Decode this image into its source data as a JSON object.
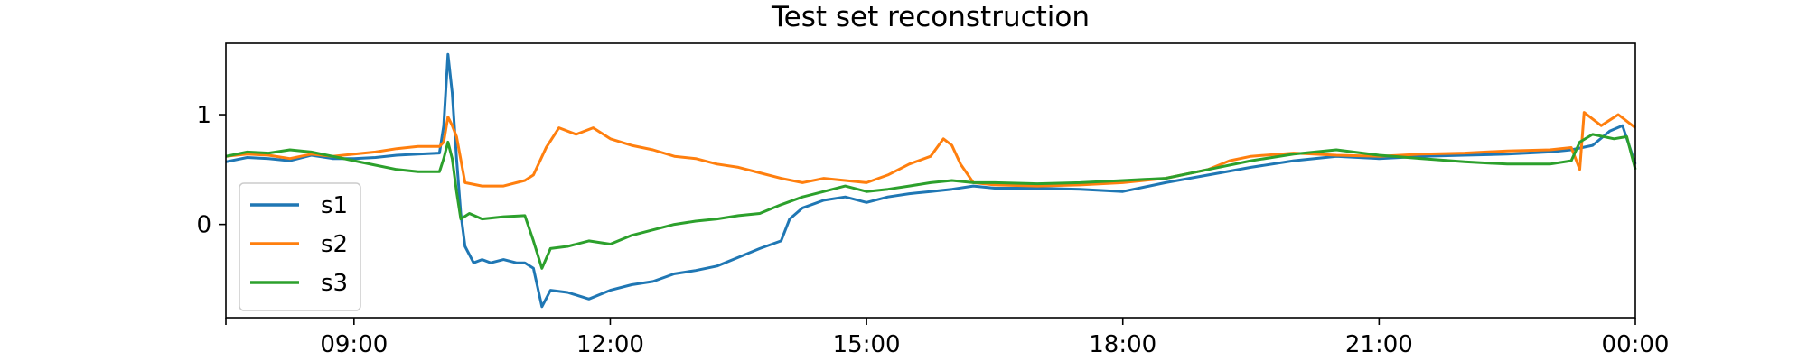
{
  "chart_data": {
    "type": "line",
    "title": "Test set reconstruction",
    "xlabel": "",
    "ylabel": "",
    "x_range": [
      "07:30",
      "24:00"
    ],
    "ylim": [
      -0.85,
      1.65
    ],
    "x_ticks": [
      {
        "label": "09:00",
        "value": 9
      },
      {
        "label": "12:00",
        "value": 12
      },
      {
        "label": "15:00",
        "value": 15
      },
      {
        "label": "18:00",
        "value": 18
      },
      {
        "label": "21:00",
        "value": 21
      },
      {
        "label": "00:00",
        "value": 24
      }
    ],
    "y_ticks": [
      {
        "label": "0",
        "value": 0
      },
      {
        "label": "1",
        "value": 1
      }
    ],
    "legend": {
      "position": "center-left"
    },
    "grid": false,
    "series": [
      {
        "name": "s1",
        "color": "#1f77b4",
        "points": [
          [
            7.5,
            0.57
          ],
          [
            7.75,
            0.61
          ],
          [
            8.0,
            0.6
          ],
          [
            8.25,
            0.58
          ],
          [
            8.5,
            0.63
          ],
          [
            8.75,
            0.6
          ],
          [
            9.0,
            0.6
          ],
          [
            9.25,
            0.61
          ],
          [
            9.5,
            0.63
          ],
          [
            9.75,
            0.64
          ],
          [
            10.0,
            0.65
          ],
          [
            10.05,
            0.9
          ],
          [
            10.1,
            1.55
          ],
          [
            10.15,
            1.2
          ],
          [
            10.2,
            0.6
          ],
          [
            10.25,
            0.1
          ],
          [
            10.3,
            -0.2
          ],
          [
            10.4,
            -0.35
          ],
          [
            10.5,
            -0.32
          ],
          [
            10.6,
            -0.35
          ],
          [
            10.75,
            -0.32
          ],
          [
            10.9,
            -0.35
          ],
          [
            11.0,
            -0.35
          ],
          [
            11.1,
            -0.4
          ],
          [
            11.2,
            -0.75
          ],
          [
            11.3,
            -0.6
          ],
          [
            11.5,
            -0.62
          ],
          [
            11.75,
            -0.68
          ],
          [
            12.0,
            -0.6
          ],
          [
            12.25,
            -0.55
          ],
          [
            12.5,
            -0.52
          ],
          [
            12.75,
            -0.45
          ],
          [
            13.0,
            -0.42
          ],
          [
            13.25,
            -0.38
          ],
          [
            13.5,
            -0.3
          ],
          [
            13.75,
            -0.22
          ],
          [
            14.0,
            -0.15
          ],
          [
            14.1,
            0.05
          ],
          [
            14.25,
            0.15
          ],
          [
            14.5,
            0.22
          ],
          [
            14.75,
            0.25
          ],
          [
            15.0,
            0.2
          ],
          [
            15.25,
            0.25
          ],
          [
            15.5,
            0.28
          ],
          [
            15.75,
            0.3
          ],
          [
            16.0,
            0.32
          ],
          [
            16.25,
            0.35
          ],
          [
            16.5,
            0.33
          ],
          [
            17.0,
            0.33
          ],
          [
            17.5,
            0.32
          ],
          [
            18.0,
            0.3
          ],
          [
            18.5,
            0.38
          ],
          [
            19.0,
            0.45
          ],
          [
            19.5,
            0.52
          ],
          [
            20.0,
            0.58
          ],
          [
            20.5,
            0.62
          ],
          [
            21.0,
            0.6
          ],
          [
            21.5,
            0.62
          ],
          [
            22.0,
            0.63
          ],
          [
            22.5,
            0.64
          ],
          [
            23.0,
            0.66
          ],
          [
            23.25,
            0.68
          ],
          [
            23.5,
            0.72
          ],
          [
            23.7,
            0.85
          ],
          [
            23.85,
            0.9
          ],
          [
            24.0,
            0.55
          ]
        ]
      },
      {
        "name": "s2",
        "color": "#ff7f0e",
        "points": [
          [
            7.5,
            0.62
          ],
          [
            7.75,
            0.64
          ],
          [
            8.0,
            0.63
          ],
          [
            8.25,
            0.6
          ],
          [
            8.5,
            0.64
          ],
          [
            8.75,
            0.62
          ],
          [
            9.0,
            0.64
          ],
          [
            9.25,
            0.66
          ],
          [
            9.5,
            0.69
          ],
          [
            9.75,
            0.71
          ],
          [
            10.0,
            0.71
          ],
          [
            10.05,
            0.75
          ],
          [
            10.1,
            0.98
          ],
          [
            10.15,
            0.9
          ],
          [
            10.2,
            0.8
          ],
          [
            10.3,
            0.38
          ],
          [
            10.5,
            0.35
          ],
          [
            10.75,
            0.35
          ],
          [
            11.0,
            0.4
          ],
          [
            11.1,
            0.45
          ],
          [
            11.25,
            0.7
          ],
          [
            11.4,
            0.88
          ],
          [
            11.6,
            0.82
          ],
          [
            11.8,
            0.88
          ],
          [
            12.0,
            0.78
          ],
          [
            12.25,
            0.72
          ],
          [
            12.5,
            0.68
          ],
          [
            12.75,
            0.62
          ],
          [
            13.0,
            0.6
          ],
          [
            13.25,
            0.55
          ],
          [
            13.5,
            0.52
          ],
          [
            13.75,
            0.47
          ],
          [
            14.0,
            0.42
          ],
          [
            14.25,
            0.38
          ],
          [
            14.5,
            0.42
          ],
          [
            14.75,
            0.4
          ],
          [
            15.0,
            0.38
          ],
          [
            15.25,
            0.45
          ],
          [
            15.5,
            0.55
          ],
          [
            15.75,
            0.62
          ],
          [
            15.9,
            0.78
          ],
          [
            16.0,
            0.72
          ],
          [
            16.1,
            0.55
          ],
          [
            16.25,
            0.38
          ],
          [
            16.5,
            0.36
          ],
          [
            17.0,
            0.35
          ],
          [
            17.5,
            0.36
          ],
          [
            18.0,
            0.38
          ],
          [
            18.5,
            0.42
          ],
          [
            19.0,
            0.5
          ],
          [
            19.25,
            0.58
          ],
          [
            19.5,
            0.62
          ],
          [
            20.0,
            0.65
          ],
          [
            20.5,
            0.63
          ],
          [
            21.0,
            0.62
          ],
          [
            21.5,
            0.64
          ],
          [
            22.0,
            0.65
          ],
          [
            22.5,
            0.67
          ],
          [
            23.0,
            0.68
          ],
          [
            23.25,
            0.7
          ],
          [
            23.35,
            0.5
          ],
          [
            23.4,
            1.02
          ],
          [
            23.6,
            0.9
          ],
          [
            23.8,
            1.0
          ],
          [
            24.0,
            0.88
          ]
        ]
      },
      {
        "name": "s3",
        "color": "#2ca02c",
        "points": [
          [
            7.5,
            0.62
          ],
          [
            7.75,
            0.66
          ],
          [
            8.0,
            0.65
          ],
          [
            8.25,
            0.68
          ],
          [
            8.5,
            0.66
          ],
          [
            8.75,
            0.62
          ],
          [
            9.0,
            0.58
          ],
          [
            9.25,
            0.54
          ],
          [
            9.5,
            0.5
          ],
          [
            9.75,
            0.48
          ],
          [
            10.0,
            0.48
          ],
          [
            10.05,
            0.6
          ],
          [
            10.1,
            0.75
          ],
          [
            10.15,
            0.6
          ],
          [
            10.2,
            0.3
          ],
          [
            10.25,
            0.05
          ],
          [
            10.35,
            0.1
          ],
          [
            10.5,
            0.05
          ],
          [
            10.75,
            0.07
          ],
          [
            11.0,
            0.08
          ],
          [
            11.1,
            -0.15
          ],
          [
            11.2,
            -0.4
          ],
          [
            11.3,
            -0.22
          ],
          [
            11.5,
            -0.2
          ],
          [
            11.75,
            -0.15
          ],
          [
            12.0,
            -0.18
          ],
          [
            12.25,
            -0.1
          ],
          [
            12.5,
            -0.05
          ],
          [
            12.75,
            0.0
          ],
          [
            13.0,
            0.03
          ],
          [
            13.25,
            0.05
          ],
          [
            13.5,
            0.08
          ],
          [
            13.75,
            0.1
          ],
          [
            14.0,
            0.18
          ],
          [
            14.25,
            0.25
          ],
          [
            14.5,
            0.3
          ],
          [
            14.75,
            0.35
          ],
          [
            15.0,
            0.3
          ],
          [
            15.25,
            0.32
          ],
          [
            15.5,
            0.35
          ],
          [
            15.75,
            0.38
          ],
          [
            16.0,
            0.4
          ],
          [
            16.25,
            0.38
          ],
          [
            16.5,
            0.38
          ],
          [
            17.0,
            0.37
          ],
          [
            17.5,
            0.38
          ],
          [
            18.0,
            0.4
          ],
          [
            18.5,
            0.42
          ],
          [
            19.0,
            0.5
          ],
          [
            19.5,
            0.58
          ],
          [
            20.0,
            0.64
          ],
          [
            20.5,
            0.68
          ],
          [
            21.0,
            0.63
          ],
          [
            21.5,
            0.6
          ],
          [
            22.0,
            0.57
          ],
          [
            22.5,
            0.55
          ],
          [
            23.0,
            0.55
          ],
          [
            23.25,
            0.58
          ],
          [
            23.35,
            0.75
          ],
          [
            23.5,
            0.82
          ],
          [
            23.75,
            0.78
          ],
          [
            23.9,
            0.8
          ],
          [
            24.0,
            0.5
          ]
        ]
      }
    ]
  }
}
